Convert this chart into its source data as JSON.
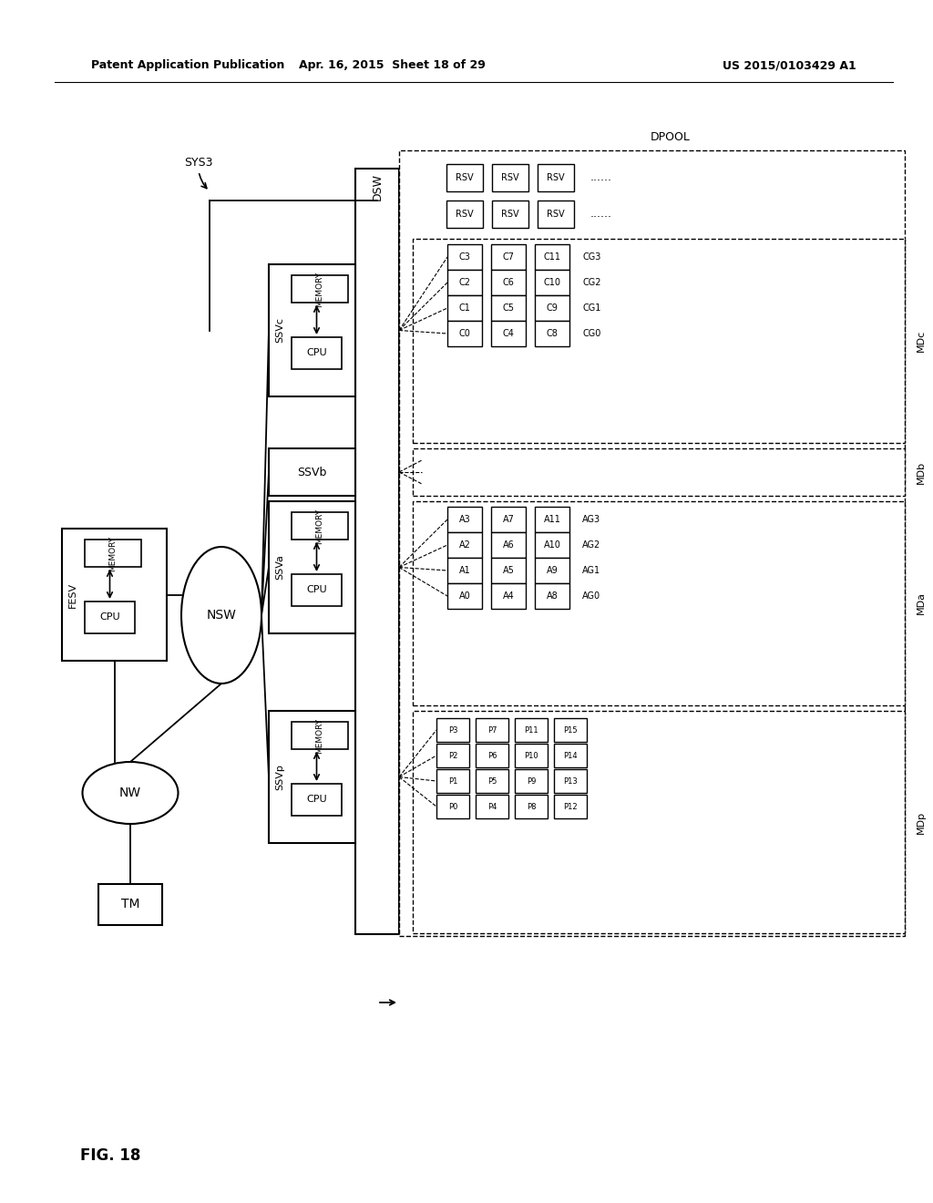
{
  "bg_color": "#ffffff",
  "header_left": "Patent Application Publication",
  "header_mid": "Apr. 16, 2015  Sheet 18 of 29",
  "header_right": "US 2015/0103429 A1",
  "fig_label": "FIG. 18",
  "sys_label": "SYS3",
  "dpool_label": "DPOOL",
  "dsw_label": "DSW",
  "nsw_label": "NSW",
  "nw_label": "NW",
  "tm_label": "TM",
  "fesv_label": "FESV",
  "cpu_label": "CPU",
  "memory_label": "MEMORY",
  "ssvc_label": "SSVc",
  "ssvb_label": "SSVb",
  "ssva_label": "SSVa",
  "ssvp_label": "SSVp",
  "mdc_label": "MDc",
  "mdb_label": "MDb",
  "mda_label": "MDa",
  "mdp_label": "MDp",
  "rsv_rows": [
    [
      "RSV",
      "RSV",
      "RSV"
    ],
    [
      "RSV",
      "RSV",
      "RSV"
    ]
  ],
  "mdc_rows": [
    [
      "C3",
      "C7",
      "C11"
    ],
    [
      "C2",
      "C6",
      "C10"
    ],
    [
      "C1",
      "C5",
      "C9"
    ],
    [
      "C0",
      "C4",
      "C8"
    ]
  ],
  "mdc_cg": [
    "CG3",
    "CG2",
    "CG1",
    "CG0"
  ],
  "mda_rows": [
    [
      "A3",
      "A7",
      "A11"
    ],
    [
      "A2",
      "A6",
      "A10"
    ],
    [
      "A1",
      "A5",
      "A9"
    ],
    [
      "A0",
      "A4",
      "A8"
    ]
  ],
  "mda_cg": [
    "AG3",
    "AG2",
    "AG1",
    "AG0"
  ],
  "mdp_rows": [
    [
      "P3",
      "P7",
      "P11",
      "P15"
    ],
    [
      "P2",
      "P6",
      "P10",
      "P14"
    ],
    [
      "P1",
      "P5",
      "P9",
      "P13"
    ],
    [
      "P0",
      "P4",
      "P8",
      "P12"
    ]
  ]
}
